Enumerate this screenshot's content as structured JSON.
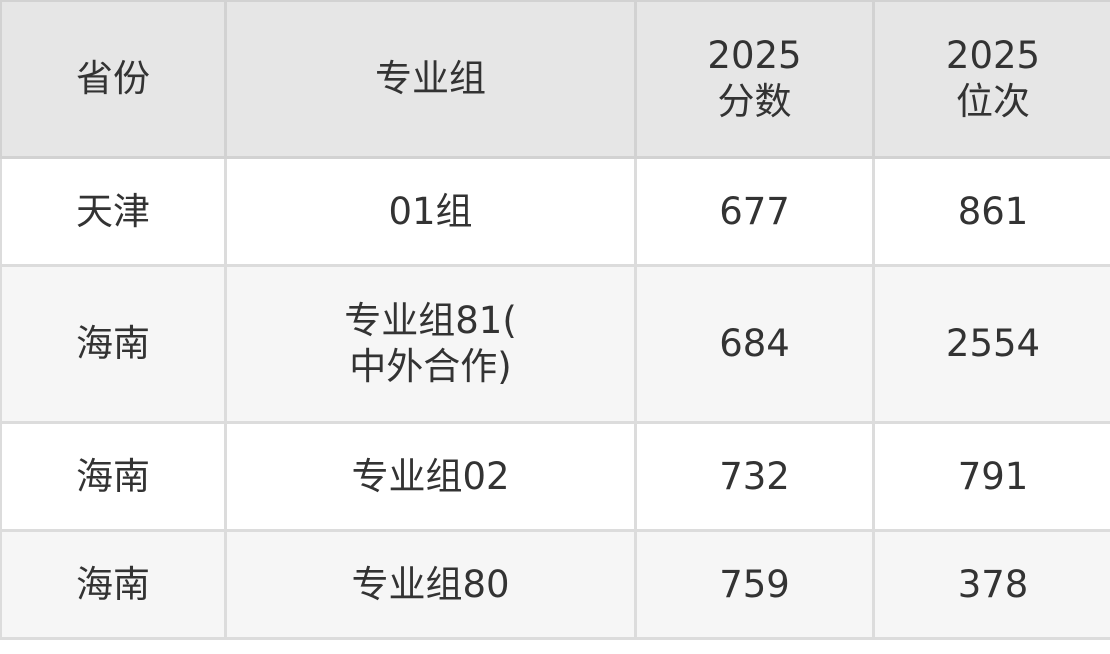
{
  "headers": [
    "省份",
    "专业组",
    "2025\n分数",
    "2025\n位次"
  ],
  "rows": [
    {
      "province": "天津",
      "group": "01组",
      "score": "677",
      "rank": "861"
    },
    {
      "province": "海南",
      "group": "专业组81(\n中外合作)",
      "score": "684",
      "rank": "2554"
    },
    {
      "province": "海南",
      "group": "专业组02",
      "score": "732",
      "rank": "791"
    },
    {
      "province": "海南",
      "group": "专业组80",
      "score": "759",
      "rank": "378"
    }
  ]
}
